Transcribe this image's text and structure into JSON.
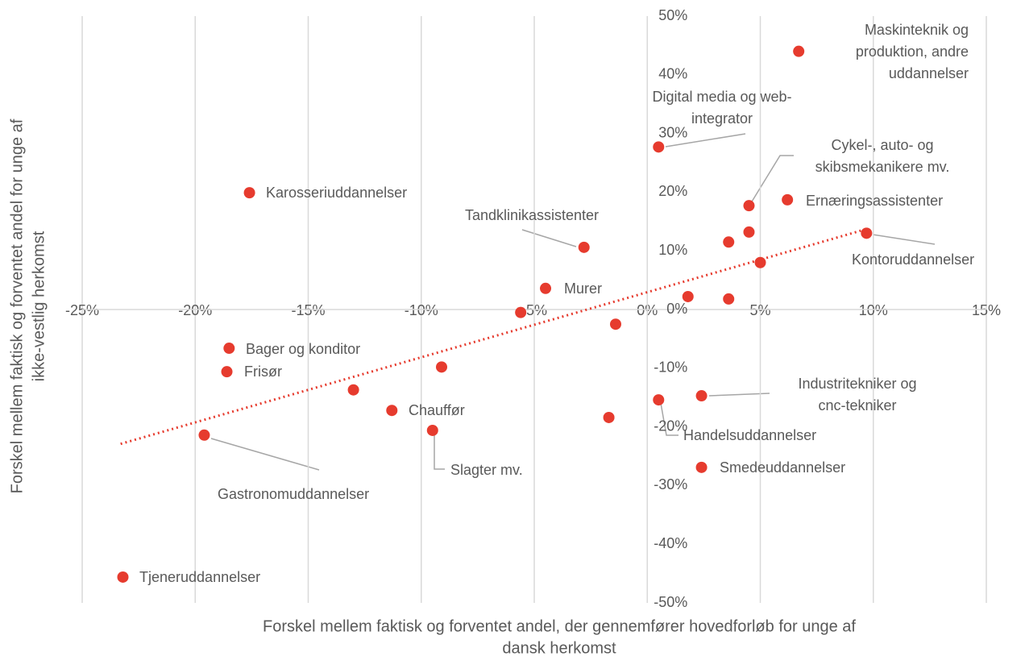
{
  "chart_data": {
    "type": "scatter",
    "color": "#e63b2e",
    "grid": true,
    "x_label": [
      "Forskel mellem faktisk og forventet andel, der gennemfører hovedforløb for unge af",
      "dansk herkomst"
    ],
    "y_label": [
      "Forskel mellem faktisk og forventet andel for unge af",
      "ikke-vestlig herkomst"
    ],
    "xlim": [
      -25,
      15
    ],
    "xticks": [
      {
        "value": -25,
        "label": "-25%"
      },
      {
        "value": -20,
        "label": "-20%"
      },
      {
        "value": -15,
        "label": "-15%"
      },
      {
        "value": -10,
        "label": "-10%"
      },
      {
        "value": -5,
        "label": "-5%"
      },
      {
        "value": 0,
        "label": "0%"
      },
      {
        "value": 5,
        "label": "5%"
      },
      {
        "value": 10,
        "label": "10%"
      },
      {
        "value": 15,
        "label": "15%"
      }
    ],
    "ylim": [
      -50,
      50
    ],
    "yticks": [
      {
        "value": 50,
        "label": "50%"
      },
      {
        "value": 40,
        "label": "40%"
      },
      {
        "value": 30,
        "label": "30%"
      },
      {
        "value": 20,
        "label": "20%"
      },
      {
        "value": 10,
        "label": "10%"
      },
      {
        "value": 0,
        "label": "0%"
      },
      {
        "value": -10,
        "label": "-10%"
      },
      {
        "value": -20,
        "label": "-20%"
      },
      {
        "value": -30,
        "label": "-30%"
      },
      {
        "value": -40,
        "label": "-40%"
      },
      {
        "value": -50,
        "label": "-50%"
      }
    ],
    "labels": [
      [
        "Maskinteknik og",
        "produktion, andre",
        "uddannelser"
      ],
      [
        "Digital media og web-",
        "integrator"
      ],
      [
        "Karosseriuddannelser"
      ],
      [
        "Cykel-, auto- og",
        "skibsmekanikere mv."
      ],
      [
        "Ernæringsassistenter"
      ],
      [
        "Tandklinikassistenter"
      ],
      [
        "Kontoruddannelser"
      ],
      null,
      null,
      null,
      [
        "Murer"
      ],
      null,
      null,
      null,
      null,
      [
        "Bager og konditor"
      ],
      [
        "Frisør"
      ],
      null,
      null,
      [
        "Chauffør"
      ],
      [
        "Slagter mv."
      ],
      [
        "Gastronomuddannelser"
      ],
      [
        "Tjeneruddannelser"
      ],
      [
        "Handelsuddannelser"
      ],
      [
        "Industritekniker og",
        "cnc-tekniker"
      ],
      null,
      [
        "Smedeuddannelser"
      ]
    ],
    "x": [
      6.7,
      0.5,
      -17.6,
      4.5,
      6.2,
      -2.8,
      9.7,
      3.6,
      4.5,
      5.0,
      -4.5,
      1.8,
      3.6,
      -5.6,
      -1.4,
      -18.5,
      -18.6,
      -9.1,
      -13.0,
      -11.3,
      -9.5,
      -19.6,
      -23.2,
      0.5,
      2.4,
      -1.7,
      2.4
    ],
    "values": [
      44.0,
      27.7,
      19.9,
      17.7,
      18.7,
      10.6,
      13.0,
      11.5,
      13.2,
      8.0,
      3.6,
      2.2,
      1.8,
      -0.5,
      -2.5,
      -6.6,
      -10.6,
      -9.8,
      -13.7,
      -17.2,
      -20.6,
      -21.4,
      -45.6,
      -15.4,
      -14.7,
      -18.4,
      -26.9
    ],
    "trendline": {
      "x": [
        -23.3,
        9.6
      ],
      "values": [
        -22.9,
        13.6
      ],
      "color": "#e63b2e"
    }
  }
}
